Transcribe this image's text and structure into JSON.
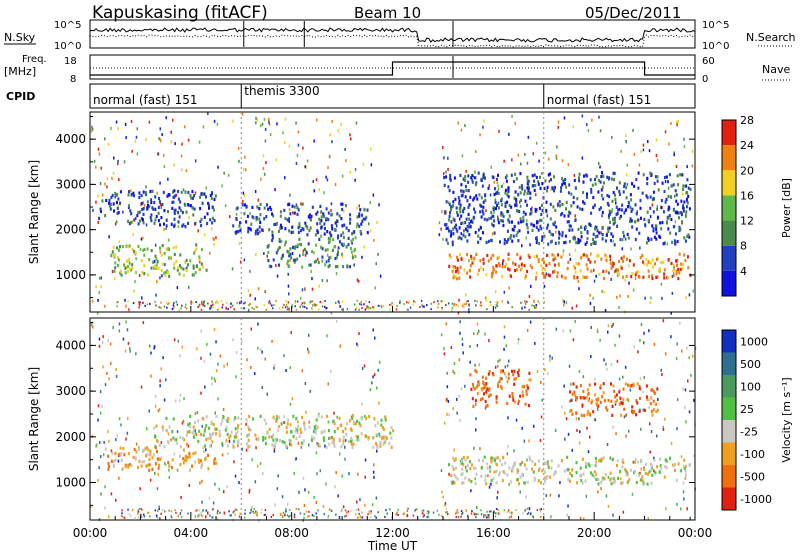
{
  "header": {
    "station": "Kapuskasing (fitACF)",
    "beam": "Beam 10",
    "date": "05/Dec/2011"
  },
  "top_panels": {
    "nsky_label": "N.Sky",
    "nsearch_label": "N.Search",
    "nsky_ticks": [
      "10^5",
      "10^0"
    ],
    "freq_label_line1": "Freq.",
    "freq_label_line2": "[MHz]",
    "freq_ticks": [
      "18",
      "8"
    ],
    "nave_ticks": [
      "60",
      "0"
    ],
    "nave_label": "Nave",
    "cpid_label": "CPID",
    "cpid_segments": [
      {
        "label": "normal (fast) 151",
        "start_hour": 0,
        "end_hour": 6
      },
      {
        "label": "themis 3300",
        "start_hour": 6,
        "end_hour": 18
      },
      {
        "label": "normal (fast) 151",
        "start_hour": 18,
        "end_hour": 24
      }
    ]
  },
  "chart_data": [
    {
      "type": "heatmap",
      "name": "power",
      "ylabel": "Slant Range [km]",
      "xlabel": "Time UT",
      "x_ticks": [
        "00:00",
        "04:00",
        "08:00",
        "12:00",
        "16:00",
        "20:00",
        "00:00"
      ],
      "xlim": [
        0,
        24
      ],
      "y_ticks": [
        1000,
        2000,
        3000,
        4000
      ],
      "ylim": [
        180,
        4600
      ],
      "colorbar_label": "Power [dB]",
      "colorbar_ticks": [
        4,
        8,
        12,
        16,
        20,
        24,
        28
      ],
      "colorbar_colors": [
        "#1010e0",
        "#2040c0",
        "#4a8a4a",
        "#60b848",
        "#f0d020",
        "#f08010",
        "#e02010"
      ],
      "regions": [
        {
          "t0": 0.3,
          "t1": 5.0,
          "r0": 2100,
          "r1": 2900,
          "level": 1
        },
        {
          "t0": 0.8,
          "t1": 4.6,
          "r0": 1000,
          "r1": 1700,
          "level": 3
        },
        {
          "t0": 5.5,
          "t1": 11.0,
          "r0": 1900,
          "r1": 2600,
          "level": 1
        },
        {
          "t0": 7.0,
          "t1": 10.5,
          "r0": 1200,
          "r1": 1900,
          "level": 2
        },
        {
          "t0": 14.2,
          "t1": 23.8,
          "r0": 950,
          "r1": 1500,
          "level": 5
        },
        {
          "t0": 14.0,
          "t1": 23.8,
          "r0": 1700,
          "r1": 3300,
          "level": 1
        }
      ]
    },
    {
      "type": "heatmap",
      "name": "velocity",
      "ylabel": "Slant Range [km]",
      "xlabel": "Time UT",
      "x_ticks": [
        "00:00",
        "04:00",
        "08:00",
        "12:00",
        "16:00",
        "20:00",
        "00:00"
      ],
      "xlim": [
        0,
        24
      ],
      "y_ticks": [
        1000,
        2000,
        3000,
        4000
      ],
      "ylim": [
        180,
        4600
      ],
      "colorbar_label": "Velocity [m s^-1]",
      "colorbar_ticks": [
        1000,
        500,
        100,
        25,
        -25,
        -100,
        -500,
        -1000
      ],
      "colorbar_colors": [
        "#1030c0",
        "#2e6f8f",
        "#4a9a60",
        "#50c040",
        "#c8c8c0",
        "#f0a020",
        "#f07010",
        "#e02010"
      ],
      "regions": [
        {
          "t0": 0.5,
          "t1": 5.0,
          "r0": 1300,
          "r1": 1800,
          "level": 5
        },
        {
          "t0": 2.5,
          "t1": 12.0,
          "r0": 1800,
          "r1": 2500,
          "level": 4
        },
        {
          "t0": 14.2,
          "t1": 23.8,
          "r0": 1000,
          "r1": 1600,
          "level": 4
        },
        {
          "t0": 15.0,
          "t1": 17.5,
          "r0": 2700,
          "r1": 3500,
          "level": 6
        },
        {
          "t0": 19.0,
          "t1": 22.5,
          "r0": 2500,
          "r1": 3200,
          "level": 6
        }
      ]
    }
  ],
  "colors": {
    "frame": "#000000",
    "gridline": "#606060",
    "background": "#ffffff"
  }
}
